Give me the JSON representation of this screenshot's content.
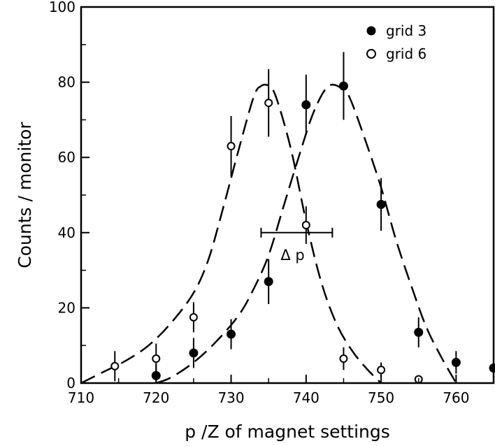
{
  "chart_data": {
    "type": "scatter",
    "title": "",
    "xlabel": "p /Z of magnet settings",
    "ylabel": "Counts / monitor",
    "xlim": [
      710,
      765
    ],
    "ylim": [
      0,
      100
    ],
    "xticks": [
      710,
      720,
      730,
      740,
      750,
      760
    ],
    "yticks": [
      0,
      20,
      40,
      60,
      80,
      100
    ],
    "grid": false,
    "legend_position": "top-right",
    "series": [
      {
        "name": "grid 3",
        "marker": "filled-circle",
        "points": [
          {
            "x": 720,
            "y": 2,
            "err": 3
          },
          {
            "x": 725,
            "y": 8,
            "err": 4
          },
          {
            "x": 730,
            "y": 13,
            "err": 4
          },
          {
            "x": 735,
            "y": 27,
            "err": 6
          },
          {
            "x": 740,
            "y": 74,
            "err": 8
          },
          {
            "x": 745,
            "y": 79,
            "err": 9
          },
          {
            "x": 750,
            "y": 47.5,
            "err": 7
          },
          {
            "x": 755,
            "y": 13.5,
            "err": 4
          },
          {
            "x": 760,
            "y": 5.5,
            "err": 3
          },
          {
            "x": 765,
            "y": 4,
            "err": 3
          }
        ],
        "fit_curve": [
          [
            720,
            0
          ],
          [
            722,
            1.5
          ],
          [
            725,
            5.5
          ],
          [
            728,
            11
          ],
          [
            731,
            18
          ],
          [
            733,
            25
          ],
          [
            735,
            34
          ],
          [
            737,
            47
          ],
          [
            739,
            60
          ],
          [
            741,
            72
          ],
          [
            743,
            79
          ],
          [
            745,
            78
          ],
          [
            746,
            75
          ],
          [
            748,
            64
          ],
          [
            750,
            52
          ],
          [
            752,
            38
          ],
          [
            754,
            26
          ],
          [
            756,
            15
          ],
          [
            758,
            7
          ],
          [
            760,
            0
          ]
        ]
      },
      {
        "name": "grid 6",
        "marker": "open-circle",
        "points": [
          {
            "x": 714.5,
            "y": 4.5,
            "err": 4
          },
          {
            "x": 720,
            "y": 6.5,
            "err": 4
          },
          {
            "x": 725,
            "y": 17.5,
            "err": 4
          },
          {
            "x": 730,
            "y": 63,
            "err": 8
          },
          {
            "x": 735,
            "y": 74.5,
            "err": 9
          },
          {
            "x": 740,
            "y": 42,
            "err": 5
          },
          {
            "x": 745,
            "y": 6.5,
            "err": 3
          },
          {
            "x": 750,
            "y": 3.5,
            "err": 2
          },
          {
            "x": 755,
            "y": 1,
            "err": 0.5
          }
        ],
        "fit_curve": [
          [
            710,
            0
          ],
          [
            713,
            3
          ],
          [
            716,
            6
          ],
          [
            719,
            10
          ],
          [
            722,
            16
          ],
          [
            725,
            24
          ],
          [
            727,
            33
          ],
          [
            729,
            47
          ],
          [
            731,
            62
          ],
          [
            733,
            76
          ],
          [
            734,
            79
          ],
          [
            735,
            79
          ],
          [
            736,
            76
          ],
          [
            738,
            62
          ],
          [
            740,
            43
          ],
          [
            742,
            27
          ],
          [
            744,
            16
          ],
          [
            746,
            9
          ],
          [
            748,
            4
          ],
          [
            750,
            0
          ]
        ]
      }
    ],
    "annotation": {
      "text": "Δ p",
      "interval": {
        "x0": 734,
        "x1": 743.5,
        "y": 40
      }
    }
  }
}
